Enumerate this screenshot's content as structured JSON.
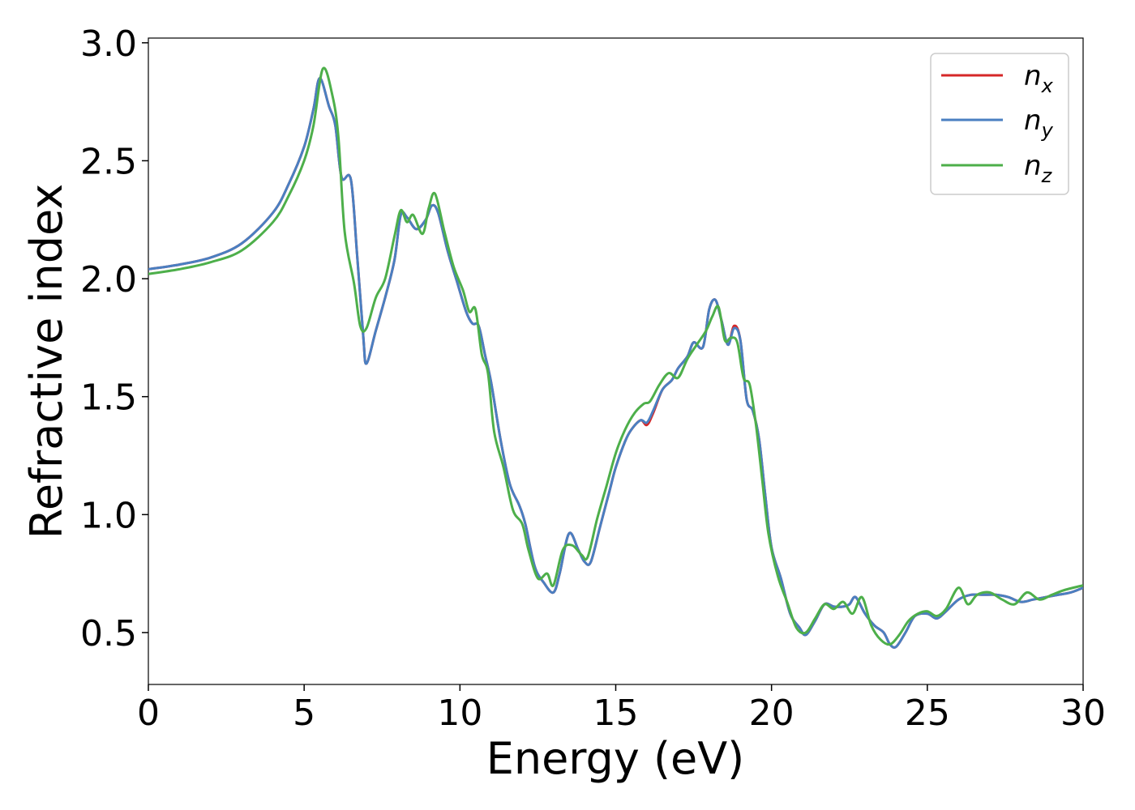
{
  "chart_data": {
    "type": "line",
    "xlabel": "Energy (eV)",
    "ylabel": "Refractive index",
    "xlim": [
      0,
      30
    ],
    "ylim": [
      0.28,
      3.02
    ],
    "xticks": [
      0,
      5,
      10,
      15,
      20,
      25,
      30
    ],
    "xtick_labels": [
      "0",
      "5",
      "10",
      "15",
      "20",
      "25",
      "30"
    ],
    "yticks": [
      0.5,
      1.0,
      1.5,
      2.0,
      2.5,
      3.0
    ],
    "ytick_labels": [
      "0.5",
      "1.0",
      "1.5",
      "2.0",
      "2.5",
      "3.0"
    ],
    "grid": false,
    "legend": "top-right",
    "series": [
      {
        "name": "n",
        "sub": "x",
        "color": "#d62728",
        "x": [
          0,
          1,
          2,
          3,
          4,
          4.5,
          5,
          5.3,
          5.5,
          5.8,
          6.0,
          6.2,
          6.5,
          6.7,
          6.9,
          7.0,
          7.3,
          7.6,
          7.9,
          8.1,
          8.3,
          8.6,
          8.9,
          9.1,
          9.3,
          9.6,
          9.9,
          10.2,
          10.4,
          10.6,
          10.8,
          11.0,
          11.3,
          11.6,
          11.9,
          12.1,
          12.4,
          12.7,
          13.0,
          13.2,
          13.5,
          13.8,
          14.0,
          14.2,
          14.5,
          14.8,
          15.0,
          15.3,
          15.5,
          15.8,
          16.0,
          16.2,
          16.5,
          16.8,
          17.0,
          17.3,
          17.5,
          17.8,
          18.0,
          18.2,
          18.4,
          18.6,
          18.8,
          19.0,
          19.2,
          19.4,
          19.6,
          19.8,
          20.0,
          20.3,
          20.6,
          20.9,
          21.1,
          21.4,
          21.7,
          22.0,
          22.3,
          22.5,
          22.7,
          23.0,
          23.3,
          23.6,
          23.8,
          24.0,
          24.3,
          24.6,
          25.0,
          25.3,
          25.6,
          26.0,
          26.4,
          26.8,
          27.2,
          27.6,
          28.0,
          28.4,
          28.8,
          29.2,
          29.6,
          30
        ],
        "y": [
          2.04,
          2.06,
          2.09,
          2.15,
          2.28,
          2.4,
          2.56,
          2.72,
          2.85,
          2.73,
          2.65,
          2.43,
          2.42,
          2.1,
          1.75,
          1.64,
          1.78,
          1.92,
          2.08,
          2.27,
          2.26,
          2.21,
          2.25,
          2.31,
          2.28,
          2.12,
          1.99,
          1.86,
          1.81,
          1.8,
          1.68,
          1.56,
          1.32,
          1.13,
          1.04,
          0.96,
          0.78,
          0.71,
          0.67,
          0.75,
          0.92,
          0.85,
          0.8,
          0.8,
          0.95,
          1.1,
          1.2,
          1.31,
          1.36,
          1.4,
          1.38,
          1.43,
          1.53,
          1.57,
          1.62,
          1.67,
          1.73,
          1.71,
          1.87,
          1.91,
          1.82,
          1.72,
          1.8,
          1.74,
          1.49,
          1.44,
          1.32,
          1.08,
          0.86,
          0.73,
          0.58,
          0.52,
          0.49,
          0.55,
          0.62,
          0.61,
          0.61,
          0.62,
          0.65,
          0.58,
          0.53,
          0.5,
          0.45,
          0.44,
          0.5,
          0.57,
          0.58,
          0.56,
          0.59,
          0.64,
          0.66,
          0.66,
          0.66,
          0.65,
          0.63,
          0.64,
          0.65,
          0.66,
          0.67,
          0.69
        ]
      },
      {
        "name": "n",
        "sub": "y",
        "color": "#4a7fc1",
        "x": [
          0,
          1,
          2,
          3,
          4,
          4.5,
          5,
          5.3,
          5.5,
          5.8,
          6.0,
          6.2,
          6.5,
          6.7,
          6.9,
          7.0,
          7.3,
          7.6,
          7.9,
          8.1,
          8.3,
          8.6,
          8.9,
          9.1,
          9.3,
          9.6,
          9.9,
          10.2,
          10.4,
          10.6,
          10.8,
          11.0,
          11.3,
          11.6,
          11.9,
          12.1,
          12.4,
          12.7,
          13.0,
          13.2,
          13.5,
          13.8,
          14.0,
          14.2,
          14.5,
          14.8,
          15.0,
          15.3,
          15.5,
          15.8,
          16.0,
          16.2,
          16.5,
          16.8,
          17.0,
          17.3,
          17.5,
          17.8,
          18.0,
          18.2,
          18.4,
          18.6,
          18.8,
          19.0,
          19.2,
          19.4,
          19.6,
          19.8,
          20.0,
          20.3,
          20.6,
          20.9,
          21.1,
          21.4,
          21.7,
          22.0,
          22.3,
          22.5,
          22.7,
          23.0,
          23.3,
          23.6,
          23.8,
          24.0,
          24.3,
          24.6,
          25.0,
          25.3,
          25.6,
          26.0,
          26.4,
          26.8,
          27.2,
          27.6,
          28.0,
          28.4,
          28.8,
          29.2,
          29.6,
          30
        ],
        "y": [
          2.04,
          2.06,
          2.09,
          2.15,
          2.28,
          2.4,
          2.56,
          2.72,
          2.85,
          2.73,
          2.65,
          2.43,
          2.42,
          2.1,
          1.75,
          1.64,
          1.78,
          1.92,
          2.08,
          2.27,
          2.26,
          2.21,
          2.25,
          2.31,
          2.28,
          2.12,
          1.99,
          1.86,
          1.81,
          1.8,
          1.68,
          1.56,
          1.32,
          1.13,
          1.04,
          0.96,
          0.78,
          0.71,
          0.67,
          0.75,
          0.92,
          0.85,
          0.8,
          0.8,
          0.95,
          1.1,
          1.2,
          1.31,
          1.36,
          1.4,
          1.39,
          1.44,
          1.53,
          1.57,
          1.62,
          1.67,
          1.73,
          1.71,
          1.87,
          1.91,
          1.82,
          1.72,
          1.79,
          1.74,
          1.49,
          1.44,
          1.32,
          1.08,
          0.86,
          0.73,
          0.58,
          0.52,
          0.49,
          0.55,
          0.62,
          0.61,
          0.61,
          0.62,
          0.65,
          0.58,
          0.53,
          0.5,
          0.45,
          0.44,
          0.5,
          0.57,
          0.58,
          0.56,
          0.59,
          0.64,
          0.66,
          0.66,
          0.66,
          0.65,
          0.63,
          0.64,
          0.65,
          0.66,
          0.67,
          0.69
        ]
      },
      {
        "name": "n",
        "sub": "z",
        "color": "#4daf4a",
        "x": [
          0,
          1,
          2,
          3,
          4,
          4.5,
          5,
          5.3,
          5.6,
          5.9,
          6.1,
          6.3,
          6.6,
          6.8,
          7.0,
          7.3,
          7.6,
          7.9,
          8.1,
          8.3,
          8.5,
          8.8,
          9.0,
          9.2,
          9.5,
          9.8,
          10.1,
          10.3,
          10.5,
          10.7,
          10.9,
          11.1,
          11.4,
          11.7,
          12.0,
          12.2,
          12.5,
          12.8,
          13.0,
          13.3,
          13.6,
          13.9,
          14.1,
          14.4,
          14.7,
          15.0,
          15.3,
          15.6,
          15.9,
          16.1,
          16.4,
          16.7,
          17.0,
          17.3,
          17.6,
          17.9,
          18.1,
          18.3,
          18.5,
          18.7,
          18.9,
          19.1,
          19.3,
          19.5,
          19.7,
          19.9,
          20.2,
          20.5,
          20.8,
          21.1,
          21.4,
          21.7,
          22.0,
          22.3,
          22.6,
          22.9,
          23.2,
          23.5,
          23.8,
          24.1,
          24.4,
          24.7,
          25.0,
          25.3,
          25.6,
          26.0,
          26.3,
          26.6,
          27.0,
          27.4,
          27.8,
          28.2,
          28.6,
          29.0,
          29.4,
          30
        ],
        "y": [
          2.02,
          2.04,
          2.07,
          2.12,
          2.24,
          2.35,
          2.5,
          2.65,
          2.89,
          2.78,
          2.6,
          2.2,
          1.98,
          1.8,
          1.79,
          1.92,
          2.0,
          2.18,
          2.29,
          2.24,
          2.27,
          2.19,
          2.3,
          2.36,
          2.2,
          2.05,
          1.95,
          1.86,
          1.87,
          1.68,
          1.6,
          1.35,
          1.2,
          1.02,
          0.96,
          0.85,
          0.73,
          0.75,
          0.7,
          0.85,
          0.87,
          0.83,
          0.82,
          0.98,
          1.12,
          1.26,
          1.36,
          1.43,
          1.47,
          1.48,
          1.55,
          1.6,
          1.58,
          1.66,
          1.72,
          1.78,
          1.84,
          1.88,
          1.74,
          1.75,
          1.73,
          1.58,
          1.55,
          1.38,
          1.15,
          0.92,
          0.74,
          0.63,
          0.52,
          0.5,
          0.56,
          0.62,
          0.6,
          0.63,
          0.58,
          0.65,
          0.53,
          0.47,
          0.45,
          0.49,
          0.55,
          0.58,
          0.59,
          0.57,
          0.6,
          0.69,
          0.62,
          0.66,
          0.67,
          0.64,
          0.62,
          0.67,
          0.64,
          0.66,
          0.68,
          0.7
        ]
      }
    ]
  }
}
